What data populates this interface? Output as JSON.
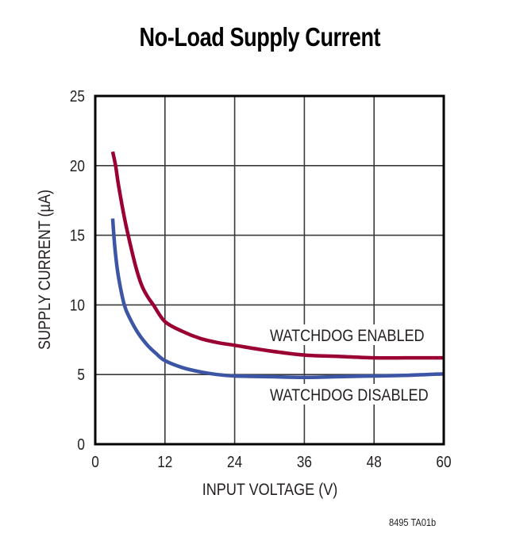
{
  "chart_data": {
    "type": "line",
    "title": "No-Load Supply Current",
    "xlabel": "INPUT VOLTAGE (V)",
    "ylabel": "SUPPLY CURRENT (µA)",
    "xlim": [
      0,
      60
    ],
    "ylim": [
      0,
      25
    ],
    "xticks": [
      0,
      12,
      24,
      36,
      48,
      60
    ],
    "yticks": [
      0,
      5,
      10,
      15,
      20,
      25
    ],
    "grid": true,
    "legend_position": "inline labels near curves",
    "series": [
      {
        "name": "WATCHDOG ENABLED",
        "color": "#9b0032",
        "x": [
          3,
          3.5,
          4,
          5,
          6,
          7,
          8,
          9,
          10,
          12,
          15,
          18,
          21,
          24,
          30,
          36,
          42,
          48,
          54,
          60
        ],
        "y": [
          21.0,
          20.0,
          18.6,
          16.3,
          14.4,
          12.7,
          11.4,
          10.6,
          10.0,
          8.8,
          8.1,
          7.6,
          7.3,
          7.1,
          6.7,
          6.4,
          6.3,
          6.2,
          6.2,
          6.2
        ]
      },
      {
        "name": "WATCHDOG DISABLED",
        "color": "#3c55a5",
        "x": [
          3,
          3.2,
          3.5,
          4,
          5,
          6,
          7.5,
          9,
          10.5,
          12,
          15,
          18,
          21,
          24,
          30,
          36,
          42,
          48,
          54,
          60
        ],
        "y": [
          16.2,
          15.0,
          13.6,
          12.0,
          10.0,
          9.0,
          7.9,
          7.1,
          6.5,
          6.0,
          5.5,
          5.2,
          5.0,
          4.9,
          4.85,
          4.8,
          4.85,
          4.9,
          4.95,
          5.05
        ]
      }
    ],
    "annotations": [
      "WATCHDOG ENABLED",
      "WATCHDOG DISABLED"
    ],
    "footnote": "8495 TA01b"
  },
  "page": {
    "title": "No-Load Supply Current",
    "footnote": "8495 TA01b"
  }
}
